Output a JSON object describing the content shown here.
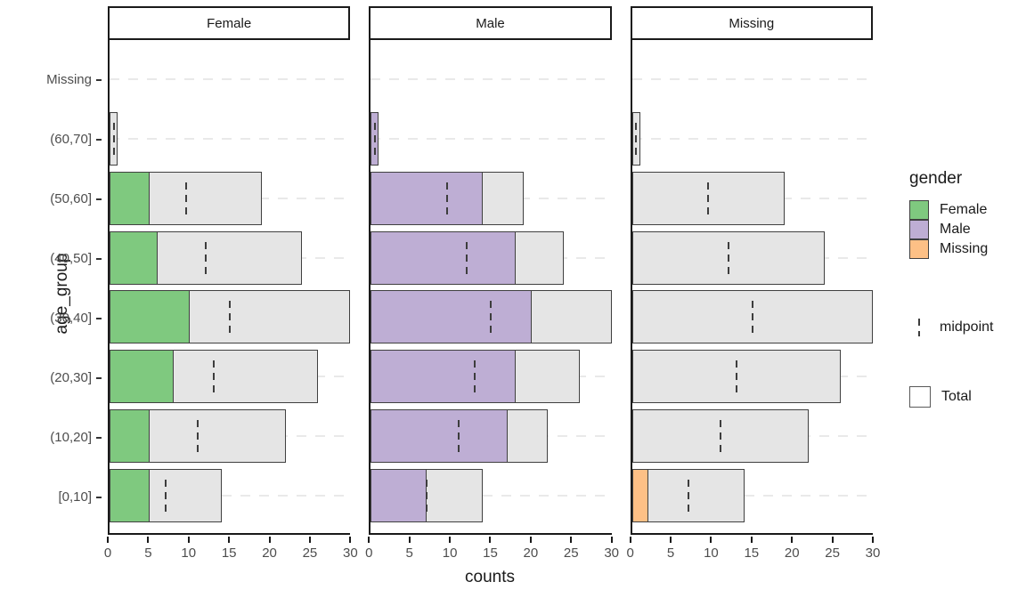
{
  "figure": {
    "x_title": "counts",
    "y_title": "age_group"
  },
  "legend": {
    "title": "gender",
    "gender_items": [
      {
        "label": "Female",
        "color": "#7FC97F"
      },
      {
        "label": "Male",
        "color": "#BEAED4"
      },
      {
        "label": "Missing",
        "color": "#FDC086"
      }
    ],
    "midpoint_label": "midpoint",
    "total_label": "Total",
    "total_color": "#E5E5E5"
  },
  "chart_data": {
    "type": "bar",
    "orientation": "horizontal",
    "title": "",
    "xlabel": "counts",
    "ylabel": "age_group",
    "xlim": [
      0,
      30
    ],
    "x_ticks": [
      0,
      5,
      10,
      15,
      20,
      25,
      30
    ],
    "grid": "dashed-horizontal",
    "legend_position": "right",
    "facets": [
      "Female",
      "Male",
      "Missing"
    ],
    "categories": [
      "Missing",
      "(60,70]",
      "(50,60]",
      "(40,50]",
      "(30,40]",
      "(20,30]",
      "(10,20]",
      "[0,10]"
    ],
    "totals": [
      0,
      1,
      19,
      24,
      30,
      26,
      22,
      14
    ],
    "midpoints": [
      null,
      0.5,
      9.5,
      12,
      15,
      13,
      11,
      7
    ],
    "series": [
      {
        "name": "Female",
        "color": "#7FC97F",
        "values": [
          0,
          0,
          5,
          6,
          10,
          8,
          5,
          5
        ]
      },
      {
        "name": "Male",
        "color": "#BEAED4",
        "values": [
          0,
          1,
          14,
          18,
          20,
          18,
          17,
          7
        ]
      },
      {
        "name": "Missing",
        "color": "#FDC086",
        "values": [
          0,
          0,
          0,
          0,
          0,
          0,
          0,
          2
        ]
      }
    ],
    "total_fill": "#E5E5E5"
  }
}
